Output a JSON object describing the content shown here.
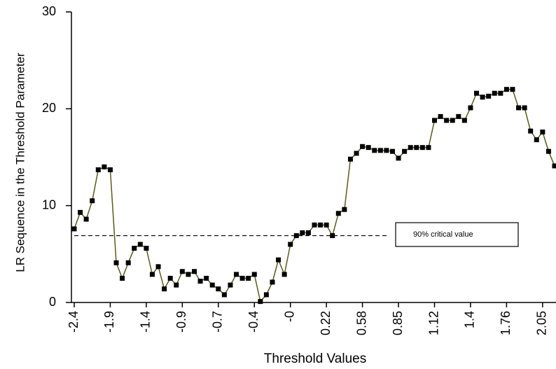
{
  "chart_data": {
    "type": "line",
    "y_label": "LR Sequence in the Threshold Parameter",
    "x_label": "Threshold Values",
    "categories": [
      "-2.4",
      null,
      null,
      null,
      null,
      null,
      "-1.9",
      null,
      null,
      null,
      null,
      null,
      "-1.4",
      null,
      null,
      null,
      null,
      null,
      "-0.9",
      null,
      null,
      null,
      null,
      null,
      "-0.7",
      null,
      null,
      null,
      null,
      null,
      "-0.4",
      null,
      null,
      null,
      null,
      null,
      "-0",
      null,
      null,
      null,
      null,
      null,
      "0.22",
      null,
      null,
      null,
      null,
      null,
      "0.58",
      null,
      null,
      null,
      null,
      null,
      "0.85",
      null,
      null,
      null,
      null,
      null,
      "1.12",
      null,
      null,
      null,
      null,
      null,
      "1.4",
      null,
      null,
      null,
      null,
      null,
      "1.76",
      null,
      null,
      null,
      null,
      null,
      "2.05",
      null,
      null
    ],
    "values": [
      7.6,
      9.3,
      8.6,
      10.5,
      13.7,
      14.0,
      13.7,
      4.1,
      2.5,
      4.1,
      5.6,
      6.0,
      5.6,
      2.9,
      3.7,
      1.4,
      2.5,
      1.8,
      3.2,
      2.9,
      3.2,
      2.2,
      2.5,
      1.8,
      1.4,
      0.8,
      1.8,
      2.9,
      2.5,
      2.5,
      2.9,
      0.1,
      0.8,
      2.1,
      4.4,
      2.9,
      6.0,
      6.9,
      7.2,
      7.2,
      8.0,
      8.0,
      8.0,
      6.9,
      9.2,
      9.6,
      14.8,
      15.4,
      16.1,
      16.0,
      15.7,
      15.7,
      15.7,
      15.6,
      14.9,
      15.6,
      16.0,
      16.0,
      16.0,
      16.0,
      18.8,
      19.2,
      18.8,
      18.8,
      19.2,
      18.8,
      20.1,
      21.6,
      21.2,
      21.3,
      21.6,
      21.6,
      22.0,
      22.0,
      20.1,
      20.1,
      17.7,
      16.8,
      17.6,
      15.6,
      14.1
    ],
    "color": "#5a5a1e",
    "marker_color": "#000000",
    "ylim": [
      0,
      30
    ],
    "yticks": [
      0,
      10,
      20,
      30
    ],
    "reference_line": {
      "value": 6.9,
      "label": "90% critical value"
    }
  }
}
